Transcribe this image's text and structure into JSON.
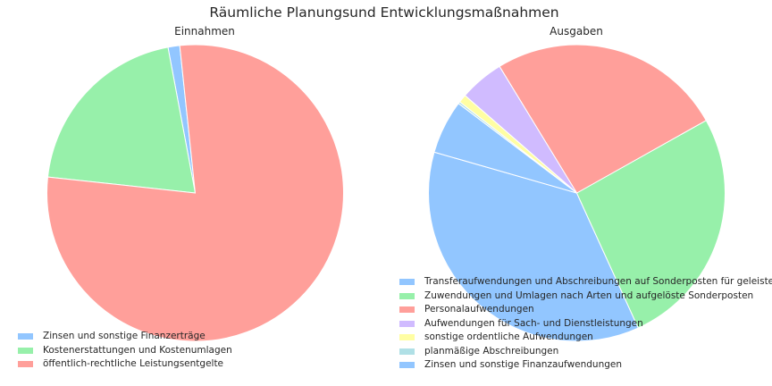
{
  "chart_data": {
    "title": "Räumliche Planungsund Entwicklungsmaßnahmen",
    "charts": [
      {
        "type": "pie",
        "subtitle": "Einnahmen",
        "start_angle_deg": 96,
        "slices": [
          {
            "label": "Zinsen und sonstige Finanzerträge",
            "share_deg": 4.6,
            "color": "#92c6ff"
          },
          {
            "label": "Kostenerstattungen und Kostenumlagen",
            "share_deg": 73.2,
            "color": "#97f0aa"
          },
          {
            "label": "öffentlich-rechtliche Leistungsentgelte",
            "share_deg": 282.2,
            "color": "#ff9f9a"
          }
        ],
        "legend_position": "lower-left"
      },
      {
        "type": "pie",
        "subtitle": "Ausgaben",
        "start_angle_deg": 164,
        "slices": [
          {
            "label": "Transferaufwendungen und Abschreibungen auf Sonderposten für geleistete Zuwendungen",
            "share_deg": 130.5,
            "color": "#92c6ff"
          },
          {
            "label": "Zuwendungen und Umlagen nach Arten und aufgelöste Sonderposten",
            "share_deg": 94.8,
            "color": "#97f0aa"
          },
          {
            "label": "Personalaufwendungen",
            "share_deg": 92.1,
            "color": "#ff9f9a"
          },
          {
            "label": "Aufwendungen für Sach- und Dienstleistungen",
            "share_deg": 17.5,
            "color": "#d0bbff"
          },
          {
            "label": "sonstige ordentliche Aufwendungen",
            "share_deg": 3.2,
            "color": "#fffea3"
          },
          {
            "label": "planmäßige Abschreibungen",
            "share_deg": 0.8,
            "color": "#b0e0e6"
          },
          {
            "label": "Zinsen und sonstige Finanzaufwendungen",
            "share_deg": 21.1,
            "color": "#92c6ff"
          }
        ],
        "legend_position": "lower-right"
      }
    ]
  }
}
